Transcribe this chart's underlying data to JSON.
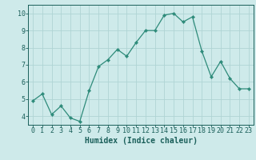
{
  "x": [
    0,
    1,
    2,
    3,
    4,
    5,
    6,
    7,
    8,
    9,
    10,
    11,
    12,
    13,
    14,
    15,
    16,
    17,
    18,
    19,
    20,
    21,
    22,
    23
  ],
  "y": [
    4.9,
    5.3,
    4.1,
    4.6,
    3.9,
    3.7,
    5.5,
    6.9,
    7.3,
    7.9,
    7.5,
    8.3,
    9.0,
    9.0,
    9.9,
    10.0,
    9.5,
    9.8,
    7.8,
    6.3,
    7.2,
    6.2,
    5.6,
    5.6
  ],
  "line_color": "#2e8b7a",
  "marker": "D",
  "marker_size": 2.2,
  "bg_color": "#ceeaea",
  "grid_color": "#afd4d4",
  "xlabel": "Humidex (Indice chaleur)",
  "xlim": [
    -0.5,
    23.5
  ],
  "ylim": [
    3.5,
    10.5
  ],
  "yticks": [
    4,
    5,
    6,
    7,
    8,
    9,
    10
  ],
  "xticks": [
    0,
    1,
    2,
    3,
    4,
    5,
    6,
    7,
    8,
    9,
    10,
    11,
    12,
    13,
    14,
    15,
    16,
    17,
    18,
    19,
    20,
    21,
    22,
    23
  ],
  "tick_color": "#1a5f5a",
  "label_fontsize": 7,
  "tick_fontsize": 6
}
